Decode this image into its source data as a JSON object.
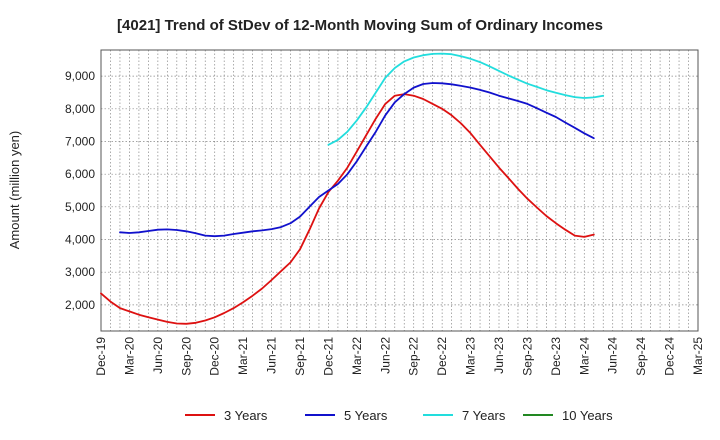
{
  "chart_data": {
    "type": "line",
    "title": "[4021]  Trend of StDev of 12-Month Moving Sum of Ordinary Incomes",
    "xlabel": "",
    "ylabel": "Amount (million yen)",
    "x_labels": [
      "Dec-19",
      "Mar-20",
      "Jun-20",
      "Sep-20",
      "Dec-20",
      "Mar-21",
      "Jun-21",
      "Sep-21",
      "Dec-21",
      "Mar-22",
      "Jun-22",
      "Sep-22",
      "Dec-22",
      "Mar-23",
      "Jun-23",
      "Sep-23",
      "Dec-23",
      "Mar-24",
      "Jun-24",
      "Sep-24",
      "Dec-24",
      "Mar-25"
    ],
    "ylim": [
      1200,
      9800
    ],
    "yticks": [
      2000,
      3000,
      4000,
      5000,
      6000,
      7000,
      8000,
      9000
    ],
    "ytick_labels": [
      "2,000",
      "3,000",
      "4,000",
      "5,000",
      "6,000",
      "7,000",
      "8,000",
      "9,000"
    ],
    "grid": true,
    "legend_position": "bottom",
    "series": [
      {
        "name": "3 Years",
        "color": "#dd1111",
        "start_index": 0,
        "values": [
          2350,
          2100,
          1900,
          1800,
          1700,
          1620,
          1550,
          1480,
          1430,
          1420,
          1450,
          1520,
          1620,
          1750,
          1900,
          2080,
          2280,
          2500,
          2760,
          3030,
          3300,
          3700,
          4300,
          4950,
          5450,
          5800,
          6200,
          6700,
          7200,
          7700,
          8150,
          8400,
          8450,
          8400,
          8300,
          8150,
          8000,
          7800,
          7550,
          7250,
          6900,
          6550,
          6200,
          5880,
          5550,
          5250,
          4980,
          4720,
          4500,
          4300,
          4120,
          4080,
          4150
        ]
      },
      {
        "name": "5 Years",
        "color": "#1111cc",
        "start_index": 2,
        "values": [
          4220,
          4200,
          4220,
          4260,
          4300,
          4310,
          4290,
          4250,
          4190,
          4120,
          4100,
          4120,
          4170,
          4210,
          4250,
          4280,
          4320,
          4380,
          4500,
          4700,
          5000,
          5300,
          5500,
          5700,
          6000,
          6400,
          6850,
          7300,
          7800,
          8200,
          8450,
          8650,
          8760,
          8790,
          8780,
          8750,
          8700,
          8650,
          8580,
          8500,
          8400,
          8320,
          8240,
          8150,
          8020,
          7880,
          7750,
          7580,
          7420,
          7250,
          7100
        ]
      },
      {
        "name": "7 Years",
        "color": "#22dddd",
        "start_index": 24,
        "values": [
          6900,
          7050,
          7300,
          7650,
          8050,
          8500,
          8950,
          9250,
          9450,
          9570,
          9640,
          9680,
          9690,
          9670,
          9610,
          9530,
          9430,
          9300,
          9160,
          9020,
          8890,
          8770,
          8670,
          8570,
          8490,
          8420,
          8360,
          8330,
          8350,
          8400
        ]
      },
      {
        "name": "10 Years",
        "color": "#228822",
        "start_index": 0,
        "values": []
      }
    ]
  }
}
